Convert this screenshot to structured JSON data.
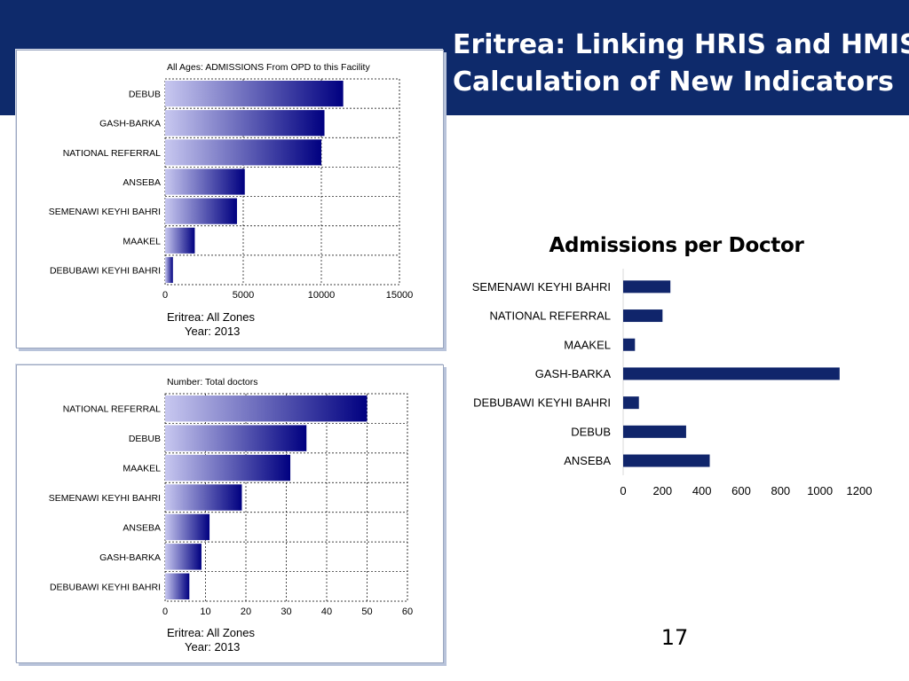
{
  "slide": {
    "title_line1": "Eritrea: Linking HRIS and HMIS:",
    "title_line2": "Calculation of New Indicators",
    "page_number": "17"
  },
  "colors": {
    "banner": "#0e2a6b",
    "bar_dark": "#000080",
    "bar_light": "#c8c8f0",
    "flat_bar": "#10256b"
  },
  "chart_data": [
    {
      "type": "bar",
      "orientation": "horizontal",
      "title": "All Ages: ADMISSIONS From OPD to this Facility",
      "categories": [
        "DEBUB",
        "GASH-BARKA",
        "NATIONAL REFERRAL",
        "ANSEBA",
        "SEMENAWI KEYHI BAHRI",
        "MAAKEL",
        "DEBUBAWI KEYHI BAHRI"
      ],
      "values": [
        11400,
        10200,
        10000,
        5100,
        4600,
        1900,
        500
      ],
      "xlim": [
        0,
        15000
      ],
      "xticks": [
        "0",
        "5000",
        "10000",
        "15000"
      ],
      "footer_line1": "Eritrea: All Zones",
      "footer_line2": "Year: 2013",
      "grid": true
    },
    {
      "type": "bar",
      "orientation": "horizontal",
      "title": "Number: Total doctors",
      "categories": [
        "NATIONAL REFERRAL",
        "DEBUB",
        "MAAKEL",
        "SEMENAWI KEYHI BAHRI",
        "ANSEBA",
        "GASH-BARKA",
        "DEBUBAWI KEYHI BAHRI"
      ],
      "values": [
        50,
        35,
        31,
        19,
        11,
        9,
        6
      ],
      "xlim": [
        0,
        60
      ],
      "xticks": [
        "0",
        "10",
        "20",
        "30",
        "40",
        "50",
        "60"
      ],
      "footer_line1": "Eritrea: All Zones",
      "footer_line2": "Year: 2013",
      "grid": true
    },
    {
      "type": "bar",
      "orientation": "horizontal",
      "title": "Admissions per Doctor",
      "categories": [
        "SEMENAWI KEYHI BAHRI",
        "NATIONAL REFERRAL",
        "MAAKEL",
        "GASH-BARKA",
        "DEBUBAWI KEYHI BAHRI",
        "DEBUB",
        "ANSEBA"
      ],
      "values": [
        240,
        200,
        60,
        1100,
        80,
        320,
        440
      ],
      "xlim": [
        0,
        1200
      ],
      "xticks": [
        "0",
        "200",
        "400",
        "600",
        "800",
        "1000",
        "1200"
      ],
      "grid": false
    }
  ]
}
